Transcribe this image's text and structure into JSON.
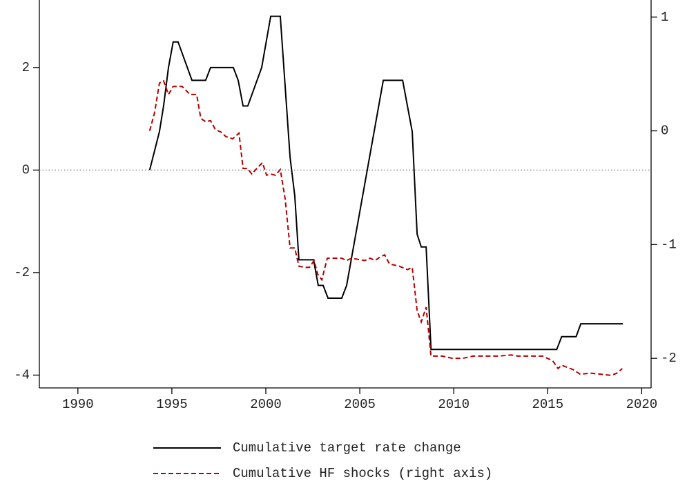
{
  "chart_data": {
    "type": "line",
    "xlim": [
      1987.95,
      2020.5
    ],
    "xticks": [
      1990,
      1995,
      2000,
      2005,
      2010,
      2015,
      2020
    ],
    "ylim": [
      -4.25,
      3.25
    ],
    "yticks": [
      -4,
      -2,
      0,
      2
    ],
    "y2lim": [
      -2.26,
      1.12
    ],
    "y2ticks": [
      -2,
      -1,
      0,
      1
    ],
    "zero_line": true,
    "legend": "bottom",
    "series": [
      {
        "name": "Cumulative target rate change",
        "color": "#000000",
        "dash": false,
        "x": [
          1993.82,
          1994.34,
          1994.56,
          1994.82,
          1995.07,
          1995.33,
          1996.07,
          1996.8,
          1997.06,
          1998.27,
          1998.53,
          1998.79,
          1999.04,
          1999.78,
          2000.26,
          2000.77,
          2001.29,
          2001.54,
          2001.76,
          2002.54,
          2002.79,
          2003.05,
          2003.31,
          2004.04,
          2004.3,
          2006.25,
          2007.28,
          2007.79,
          2008.05,
          2008.27,
          2008.53,
          2008.79,
          2015.48,
          2015.74,
          2016.51,
          2016.76,
          2019.0
        ],
        "values": [
          0,
          0.75,
          1.25,
          2,
          2.5,
          2.5,
          1.75,
          1.75,
          2,
          2,
          1.75,
          1.25,
          1.25,
          2,
          3,
          3,
          0.25,
          -0.5,
          -1.75,
          -1.75,
          -2.25,
          -2.25,
          -2.5,
          -2.5,
          -2.25,
          1.75,
          1.75,
          0.75,
          -1.25,
          -1.5,
          -1.5,
          -3.5,
          -3.5,
          -3.25,
          -3.25,
          -3,
          -3
        ]
      },
      {
        "name": "Cumulative HF shocks (right axis)",
        "color": "#b30000",
        "dash": true,
        "axis": "y2",
        "x": [
          1993.82,
          1994.08,
          1994.34,
          1994.56,
          1994.82,
          1995.07,
          1995.55,
          1995.96,
          1996.32,
          1996.54,
          1996.8,
          1997.06,
          1997.32,
          1997.61,
          1997.87,
          1998.24,
          1998.57,
          1998.79,
          1999.01,
          1999.26,
          1999.52,
          1999.82,
          2000.04,
          2000.26,
          2000.51,
          2000.77,
          2001.03,
          2001.29,
          2001.54,
          2001.76,
          2002.1,
          2002.32,
          2002.57,
          2002.76,
          2002.98,
          2003.27,
          2003.53,
          2004.04,
          2004.3,
          2004.56,
          2005.26,
          2005.55,
          2005.81,
          2006.07,
          2006.32,
          2006.58,
          2007.1,
          2007.54,
          2007.79,
          2008.05,
          2008.27,
          2008.53,
          2008.79,
          2009.38,
          2009.93,
          2010.48,
          2011.03,
          2012.39,
          2013.05,
          2013.42,
          2014.71,
          2015.26,
          2015.55,
          2015.74,
          2016.36,
          2016.73,
          2017.28,
          2018.38,
          2018.68,
          2018.97
        ],
        "values": [
          0,
          0.16,
          0.42,
          0.44,
          0.32,
          0.39,
          0.39,
          0.32,
          0.32,
          0.11,
          0.08,
          0.09,
          0.01,
          -0.01,
          -0.05,
          -0.07,
          -0.02,
          -0.33,
          -0.33,
          -0.38,
          -0.33,
          -0.28,
          -0.39,
          -0.38,
          -0.39,
          -0.34,
          -0.6,
          -1.03,
          -1.03,
          -1.19,
          -1.2,
          -1.2,
          -1.14,
          -1.26,
          -1.31,
          -1.12,
          -1.12,
          -1.12,
          -1.14,
          -1.12,
          -1.14,
          -1.12,
          -1.14,
          -1.11,
          -1.09,
          -1.17,
          -1.19,
          -1.22,
          -1.2,
          -1.58,
          -1.68,
          -1.55,
          -1.98,
          -1.98,
          -2.0,
          -2.0,
          -1.98,
          -1.98,
          -1.97,
          -1.98,
          -1.98,
          -2.02,
          -2.09,
          -2.06,
          -2.1,
          -2.14,
          -2.13,
          -2.15,
          -2.13,
          -2.09
        ]
      }
    ]
  }
}
